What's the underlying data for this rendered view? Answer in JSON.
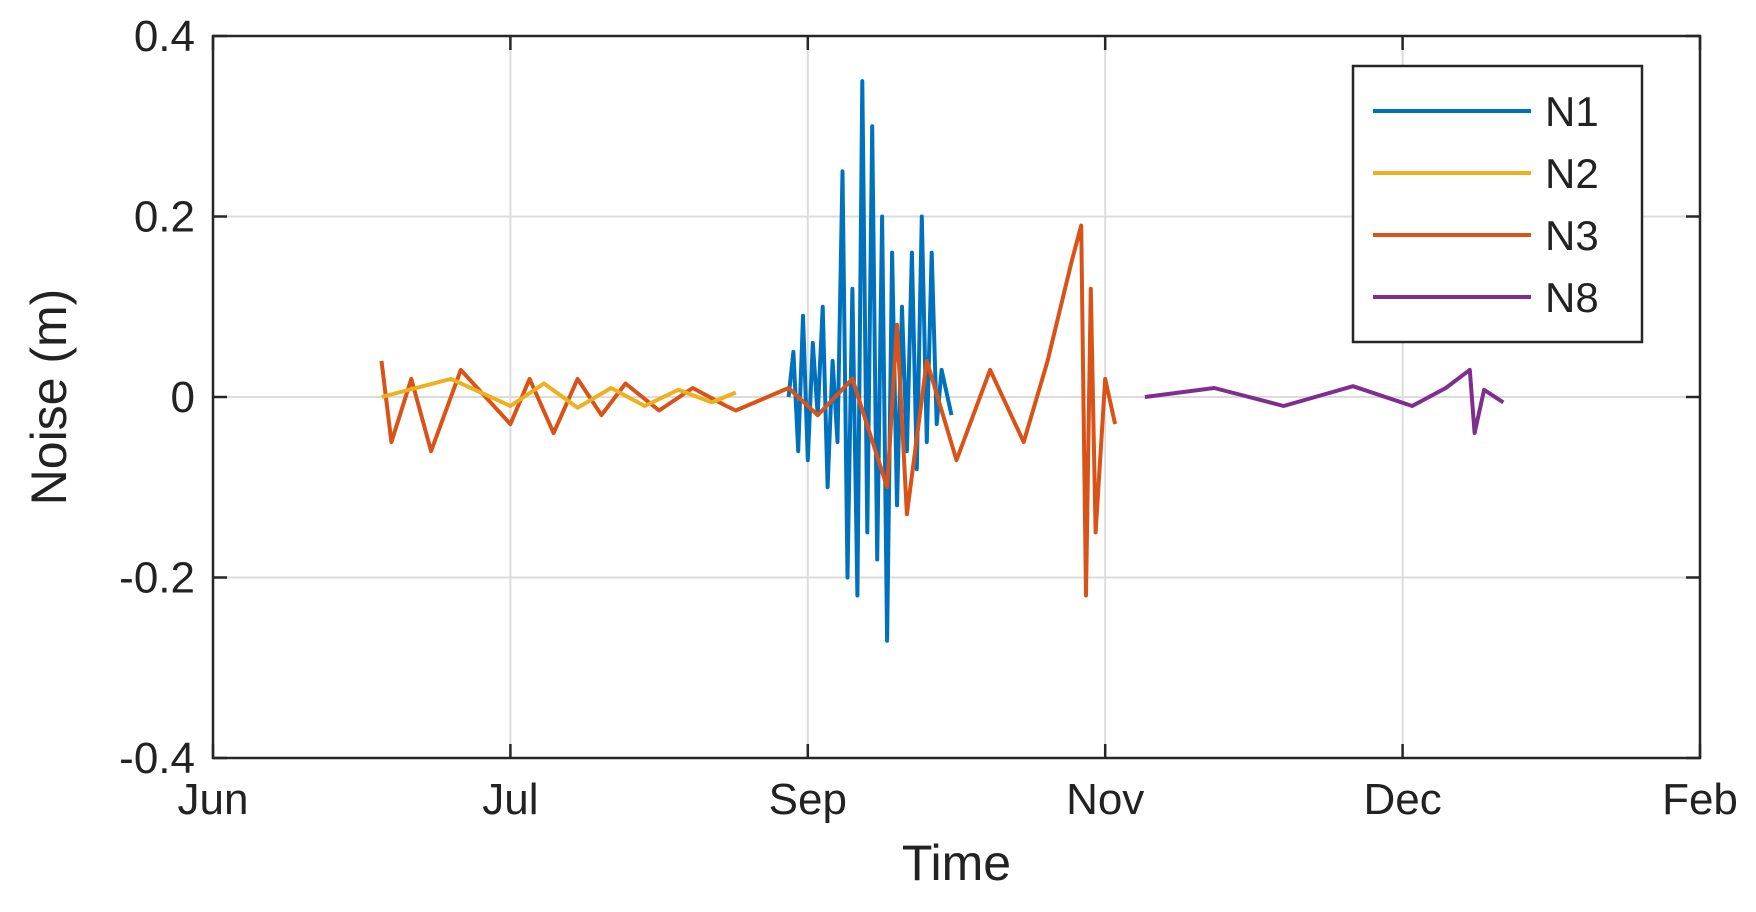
{
  "chart_data": {
    "type": "line",
    "title": "",
    "xlabel": "Time",
    "ylabel": "Noise (m)",
    "x_ticks": [
      "Jun",
      "Jul",
      "Sep",
      "Nov",
      "Dec",
      "Feb"
    ],
    "y_ticks": [
      "0.4",
      "0.2",
      "0",
      "-0.2",
      "-0.4"
    ],
    "xlim": [
      "Jun",
      "Feb"
    ],
    "ylim": [
      -0.4,
      0.4
    ],
    "grid": true,
    "legend_position": "top-right",
    "series": [
      {
        "name": "N1",
        "color": "#0072BD",
        "points": [
          [
            "Aug 28",
            0.0
          ],
          [
            "Aug 29",
            0.05
          ],
          [
            "Aug 30",
            -0.06
          ],
          [
            "Aug 31",
            0.09
          ],
          [
            "Sep 1",
            -0.07
          ],
          [
            "Sep 2",
            0.06
          ],
          [
            "Sep 3",
            -0.02
          ],
          [
            "Sep 4",
            0.1
          ],
          [
            "Sep 5",
            -0.1
          ],
          [
            "Sep 6",
            0.04
          ],
          [
            "Sep 7",
            -0.05
          ],
          [
            "Sep 8",
            0.25
          ],
          [
            "Sep 9",
            -0.2
          ],
          [
            "Sep 10",
            0.12
          ],
          [
            "Sep 11",
            -0.22
          ],
          [
            "Sep 12",
            0.35
          ],
          [
            "Sep 13",
            -0.15
          ],
          [
            "Sep 14",
            0.3
          ],
          [
            "Sep 15",
            -0.18
          ],
          [
            "Sep 16",
            0.2
          ],
          [
            "Sep 17",
            -0.27
          ],
          [
            "Sep 18",
            0.16
          ],
          [
            "Sep 19",
            -0.12
          ],
          [
            "Sep 20",
            0.1
          ],
          [
            "Sep 21",
            -0.06
          ],
          [
            "Sep 22",
            0.16
          ],
          [
            "Sep 23",
            -0.08
          ],
          [
            "Sep 24",
            0.2
          ],
          [
            "Sep 25",
            -0.05
          ],
          [
            "Sep 26",
            0.16
          ],
          [
            "Sep 27",
            -0.03
          ],
          [
            "Sep 28",
            0.03
          ],
          [
            "Sep 30",
            -0.02
          ]
        ]
      },
      {
        "name": "N2",
        "color": "#EDB120",
        "points": [
          [
            "Jun 18",
            0.0
          ],
          [
            "Jun 25",
            0.02
          ],
          [
            "Jul 1",
            -0.01
          ],
          [
            "Jul 8",
            0.015
          ],
          [
            "Jul 15",
            -0.012
          ],
          [
            "Jul 22",
            0.01
          ],
          [
            "Jul 29",
            -0.01
          ],
          [
            "Aug 5",
            0.008
          ],
          [
            "Aug 12",
            -0.006
          ],
          [
            "Aug 17",
            0.005
          ]
        ]
      },
      {
        "name": "N3",
        "color": "#D95319",
        "points": [
          [
            "Jun 18",
            0.04
          ],
          [
            "Jun 19",
            -0.05
          ],
          [
            "Jun 21",
            0.02
          ],
          [
            "Jun 23",
            -0.06
          ],
          [
            "Jun 26",
            0.03
          ],
          [
            "Jul 1",
            -0.03
          ],
          [
            "Jul 5",
            0.02
          ],
          [
            "Jul 10",
            -0.04
          ],
          [
            "Jul 15",
            0.02
          ],
          [
            "Jul 20",
            -0.02
          ],
          [
            "Jul 25",
            0.015
          ],
          [
            "Aug 1",
            -0.015
          ],
          [
            "Aug 8",
            0.01
          ],
          [
            "Aug 15",
            -0.01
          ],
          [
            "Aug 17",
            -0.015
          ],
          [
            "Aug 28",
            0.01
          ],
          [
            "Sep 3",
            -0.02
          ],
          [
            "Sep 10",
            0.02
          ],
          [
            "Sep 17",
            -0.1
          ],
          [
            "Sep 19",
            0.08
          ],
          [
            "Sep 21",
            -0.13
          ],
          [
            "Sep 25",
            0.04
          ],
          [
            "Oct 1",
            -0.07
          ],
          [
            "Oct 8",
            0.03
          ],
          [
            "Oct 15",
            -0.05
          ],
          [
            "Oct 20",
            0.04
          ],
          [
            "Oct 25",
            0.15
          ],
          [
            "Oct 27",
            0.19
          ],
          [
            "Oct 28",
            -0.22
          ],
          [
            "Oct 29",
            0.12
          ],
          [
            "Oct 30",
            -0.15
          ],
          [
            "Nov 1",
            0.02
          ],
          [
            "Nov 2",
            -0.03
          ]
        ]
      },
      {
        "name": "N8",
        "color": "#7E2F8E",
        "points": [
          [
            "Nov 5",
            0.0
          ],
          [
            "Nov 12",
            0.01
          ],
          [
            "Nov 19",
            -0.01
          ],
          [
            "Nov 26",
            0.012
          ],
          [
            "Dec 3",
            -0.01
          ],
          [
            "Dec 10",
            0.01
          ],
          [
            "Dec 15",
            0.03
          ],
          [
            "Dec 16",
            -0.04
          ],
          [
            "Dec 18",
            0.008
          ],
          [
            "Dec 22",
            -0.006
          ]
        ]
      }
    ]
  }
}
